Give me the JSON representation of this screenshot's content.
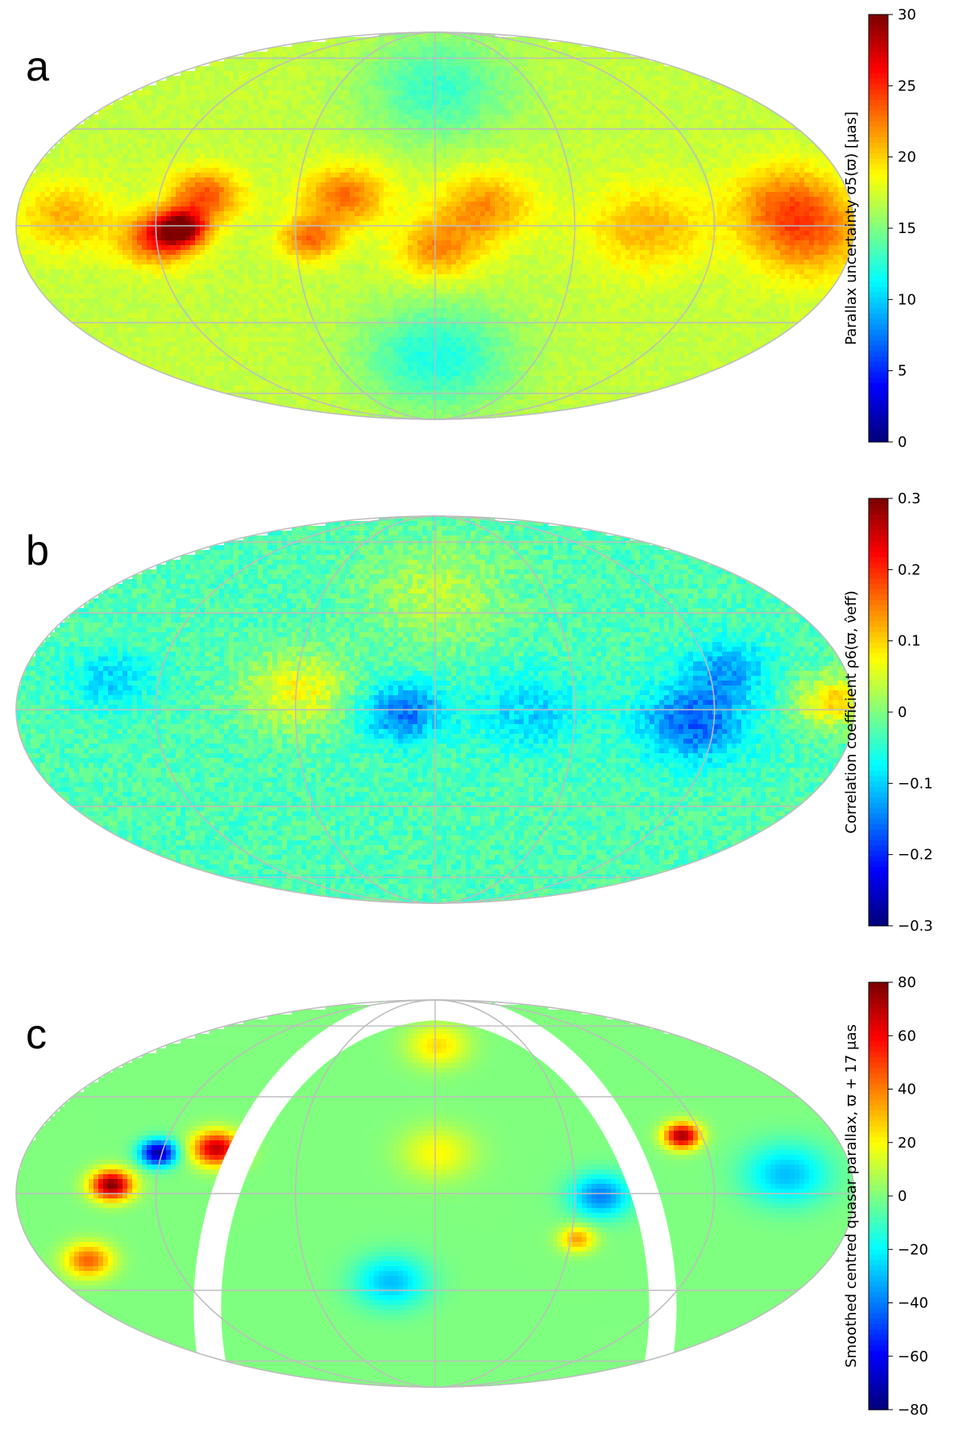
{
  "chart_data": [
    {
      "type": "heatmap",
      "panel_letter": "a",
      "projection": "Aitoff/Mollweide all-sky map",
      "graticule": true,
      "colormap": "jet",
      "colorbar": {
        "label": "Parallax uncertainty σ5(ϖ) [μas]",
        "min": 0,
        "max": 30,
        "ticks": [
          0,
          5,
          10,
          15,
          20,
          25,
          30
        ]
      },
      "background_value": 17,
      "features": [
        {
          "lon": -150,
          "lat": 12,
          "value": 22,
          "spread": 18
        },
        {
          "lon": -160,
          "lat": -5,
          "value": 22,
          "spread": 20
        },
        {
          "lon": -90,
          "lat": 0,
          "value": 21,
          "spread": 20
        },
        {
          "lon": -20,
          "lat": 10,
          "value": 22,
          "spread": 16
        },
        {
          "lon": 0,
          "lat": -10,
          "value": 22,
          "spread": 14
        },
        {
          "lon": 40,
          "lat": 15,
          "value": 23,
          "spread": 14
        },
        {
          "lon": 55,
          "lat": -5,
          "value": 23,
          "spread": 10
        },
        {
          "lon": 100,
          "lat": 15,
          "value": 24,
          "spread": 12
        },
        {
          "lon": 110,
          "lat": 0,
          "value": 28,
          "spread": 8
        },
        {
          "lon": 120,
          "lat": -5,
          "value": 25,
          "spread": 12
        },
        {
          "lon": 160,
          "lat": 5,
          "value": 21,
          "spread": 16
        },
        {
          "lon": 0,
          "lat": 65,
          "value": 13,
          "spread": 25
        },
        {
          "lon": 0,
          "lat": -60,
          "value": 12,
          "spread": 25
        }
      ]
    },
    {
      "type": "heatmap",
      "panel_letter": "b",
      "projection": "Aitoff/Mollweide all-sky map",
      "graticule": true,
      "colormap": "jet",
      "colorbar": {
        "label": "Correlation coefficient ρ6(ϖ, ν̂eff)",
        "min": -0.3,
        "max": 0.3,
        "ticks": [
          -0.3,
          -0.2,
          -0.1,
          0,
          0.1,
          0.2,
          0.3
        ],
        "tick_labels": [
          "−0.3",
          "−0.2",
          "−0.1",
          "0",
          "0.1",
          "0.2",
          "0.3"
        ]
      },
      "background_value": -0.03,
      "features": [
        {
          "lon": -170,
          "lat": 5,
          "value": 0.1,
          "spread": 12
        },
        {
          "lon": -110,
          "lat": -5,
          "value": -0.17,
          "spread": 18
        },
        {
          "lon": -125,
          "lat": 20,
          "value": -0.12,
          "spread": 14
        },
        {
          "lon": -40,
          "lat": 0,
          "value": -0.1,
          "spread": 18
        },
        {
          "lon": 15,
          "lat": 0,
          "value": -0.16,
          "spread": 14
        },
        {
          "lon": 60,
          "lat": 10,
          "value": 0.07,
          "spread": 18
        },
        {
          "lon": 140,
          "lat": 15,
          "value": -0.1,
          "spread": 14
        },
        {
          "lon": 0,
          "lat": 55,
          "value": 0.03,
          "spread": 25
        }
      ]
    },
    {
      "type": "heatmap",
      "panel_letter": "c",
      "projection": "Aitoff/Mollweide all-sky map",
      "graticule": true,
      "colormap": "jet",
      "masked_band": "galactic plane (white, no data)",
      "colorbar": {
        "label": "Smoothed centred quasar parallax, ϖ + 17 μas",
        "min": -80,
        "max": 80,
        "ticks": [
          -80,
          -60,
          -40,
          -20,
          0,
          20,
          40,
          60,
          80
        ],
        "tick_labels": [
          "−80",
          "−60",
          "−40",
          "−20",
          "0",
          "20",
          "40",
          "60",
          "80"
        ]
      },
      "background_value": 0,
      "features": [
        {
          "lon": -105,
          "lat": 28,
          "value": 75,
          "spread": 6
        },
        {
          "lon": 95,
          "lat": 22,
          "value": 70,
          "spread": 8
        },
        {
          "lon": 120,
          "lat": 20,
          "value": -75,
          "spread": 6
        },
        {
          "lon": 140,
          "lat": 5,
          "value": 80,
          "spread": 7
        },
        {
          "lon": 150,
          "lat": -30,
          "value": 45,
          "spread": 8
        },
        {
          "lon": -150,
          "lat": 10,
          "value": -30,
          "spread": 14
        },
        {
          "lon": -70,
          "lat": 0,
          "value": -40,
          "spread": 10
        },
        {
          "lon": -60,
          "lat": -20,
          "value": 35,
          "spread": 6
        },
        {
          "lon": 0,
          "lat": 20,
          "value": 20,
          "spread": 12
        },
        {
          "lon": 20,
          "lat": -40,
          "value": -30,
          "spread": 12
        },
        {
          "lon": 0,
          "lat": 70,
          "value": 25,
          "spread": 10
        }
      ]
    }
  ]
}
